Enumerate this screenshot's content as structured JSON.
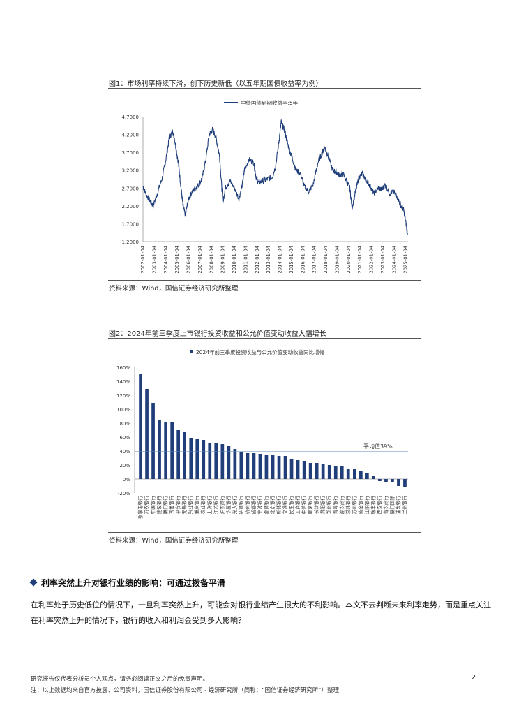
{
  "figure1": {
    "title": "图1：市场利率持续下滑，创下历史新低（以五年期国债收益率为例）",
    "source": "资料来源：Wind，国信证券经济研究所整理"
  },
  "figure2": {
    "title": "图2：2024年前三季度上市银行投资收益和公允价值变动收益大幅增长",
    "source": "资料来源：Wind，国信证券经济研究所整理"
  },
  "section": {
    "heading": "利率突然上升对银行业绩的影响：可通过拨备平滑",
    "paragraph": "在利率处于历史低位的情况下，一旦利率突然上升，可能会对银行业绩产生很大的不利影响。本文不去判断未来利率走势，而是重点关注在利率突然上升的情况下，银行的收入和利润会受到多大影响？"
  },
  "footer": {
    "disclaimer": "研究报告仅代表分析员个人观点，请务必阅读正文之后的免责声明。",
    "note": "注：以上数据均来自官方披露、公司资料，国信证券股份有限公司 - 经济研究所（简称：“国信证券经济研究所”）整理",
    "page": "2"
  },
  "colors": {
    "series": "#1f3e7a",
    "axis": "#999999",
    "avg_line": "#5b88b5"
  },
  "chart_data": [
    {
      "type": "line",
      "legend": "中债国债到期收益率:5年",
      "ylim": [
        1.2,
        4.7
      ],
      "yticks": [
        "4.7000",
        "4.2000",
        "3.7000",
        "3.2000",
        "2.7000",
        "2.2000",
        "1.7000",
        "1.2000"
      ],
      "xticks": [
        "2002-01-04",
        "2003-01-04",
        "2004-01-04",
        "2005-01-04",
        "2006-01-04",
        "2007-01-04",
        "2008-01-04",
        "2009-01-04",
        "2010-01-04",
        "2011-01-04",
        "2012-01-04",
        "2013-01-04",
        "2014-01-04",
        "2015-01-04",
        "2016-01-04",
        "2017-01-04",
        "2018-01-04",
        "2019-01-04",
        "2020-01-04",
        "2021-01-04",
        "2022-01-04",
        "2023-01-04",
        "2024-01-04",
        "2025-01-04"
      ],
      "x": [
        2002.0,
        2002.3,
        2002.6,
        2002.9,
        2003.3,
        2003.7,
        2004.0,
        2004.3,
        2004.6,
        2004.8,
        2005.1,
        2005.3,
        2005.5,
        2005.7,
        2006.0,
        2006.3,
        2006.6,
        2006.9,
        2007.2,
        2007.5,
        2007.8,
        2008.1,
        2008.4,
        2008.7,
        2008.9,
        2009.0,
        2009.2,
        2009.6,
        2010.0,
        2010.4,
        2010.7,
        2010.9,
        2011.3,
        2011.7,
        2011.9,
        2012.1,
        2012.5,
        2012.9,
        2013.3,
        2013.6,
        2013.9,
        2014.1,
        2014.4,
        2014.7,
        2015.0,
        2015.4,
        2015.8,
        2016.1,
        2016.5,
        2016.9,
        2017.3,
        2017.7,
        2017.9,
        2018.2,
        2018.6,
        2018.9,
        2019.2,
        2019.5,
        2019.9,
        2020.1,
        2020.3,
        2020.6,
        2020.9,
        2021.2,
        2021.6,
        2021.9,
        2022.2,
        2022.6,
        2022.9,
        2023.2,
        2023.6,
        2023.9,
        2024.2,
        2024.5,
        2024.8,
        2025.0,
        2025.15
      ],
      "y": [
        2.75,
        2.5,
        2.35,
        2.2,
        2.6,
        3.0,
        3.5,
        4.1,
        4.3,
        4.0,
        3.4,
        2.8,
        2.2,
        1.95,
        2.4,
        2.6,
        2.7,
        2.8,
        3.0,
        3.5,
        4.2,
        4.35,
        4.1,
        3.6,
        2.7,
        2.3,
        2.7,
        2.9,
        2.7,
        2.4,
        2.8,
        3.25,
        3.5,
        3.4,
        3.0,
        2.85,
        2.9,
        2.95,
        3.0,
        3.3,
        4.0,
        4.55,
        4.3,
        3.9,
        3.6,
        3.2,
        3.1,
        2.75,
        2.6,
        2.8,
        3.4,
        3.7,
        3.85,
        3.6,
        3.2,
        3.15,
        3.05,
        3.1,
        2.85,
        2.7,
        2.15,
        2.6,
        3.0,
        3.1,
        2.9,
        2.75,
        2.55,
        2.7,
        2.65,
        2.8,
        2.55,
        2.6,
        2.5,
        2.25,
        2.1,
        1.75,
        1.4
      ]
    },
    {
      "type": "bar",
      "legend": "2024年前三季度投资收益与公允价值变动收益同比增幅",
      "ylim": [
        -20,
        160
      ],
      "yticks": [
        "160%",
        "140%",
        "120%",
        "100%",
        "80%",
        "60%",
        "40%",
        "20%",
        "0%",
        "-20%"
      ],
      "average": 39,
      "average_label": "平均值39%",
      "categories": [
        "张家港银行",
        "苏农银行",
        "中国银行",
        "建设银行",
        "厦门银行",
        "齐鲁银行",
        "平安银行",
        "无锡银行",
        "兴业银行",
        "重庆银行",
        "农业银行",
        "上海银行",
        "江苏银行",
        "沪农商行",
        "华夏银行",
        "光大银行",
        "招商银行",
        "杭州银行",
        "成都银行",
        "宁波银行",
        "浙商银行",
        "北京银行",
        "邮储银行",
        "交通银行",
        "民生银行",
        "工商银行",
        "中信银行",
        "南京银行",
        "长沙银行",
        "贵阳银行",
        "郑州银行",
        "青岛银行",
        "渝农商行",
        "常熟银行",
        "苏州银行",
        "紫金银行",
        "江阴银行",
        "瑞丰银行",
        "西安银行",
        "青农商行",
        "厦门国际",
        "浦发银行",
        "兰州银行"
      ],
      "values": [
        150,
        129,
        109,
        85,
        82,
        81,
        70,
        67,
        58,
        57,
        56,
        52,
        51,
        50,
        47,
        43,
        38,
        37,
        37,
        36,
        35,
        35,
        33,
        33,
        28,
        27,
        26,
        23,
        23,
        21,
        20,
        19,
        18,
        15,
        14,
        12,
        9,
        4,
        -3,
        -4,
        -5,
        -10,
        -12
      ]
    }
  ]
}
